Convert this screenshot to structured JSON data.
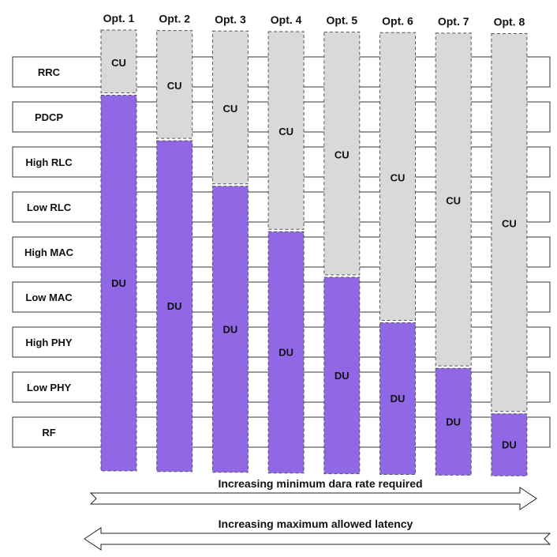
{
  "layers": [
    "RRC",
    "PDCP",
    "High RLC",
    "Low RLC",
    "High MAC",
    "Low MAC",
    "High PHY",
    "Low PHY",
    "RF"
  ],
  "options": [
    {
      "label": "Opt. 1",
      "cu_label": "CU",
      "du_label": "DU",
      "split_after_layer": 1
    },
    {
      "label": "Opt. 2",
      "cu_label": "CU",
      "du_label": "DU",
      "split_after_layer": 2
    },
    {
      "label": "Opt. 3",
      "cu_label": "CU",
      "du_label": "DU",
      "split_after_layer": 3
    },
    {
      "label": "Opt. 4",
      "cu_label": "CU",
      "du_label": "DU",
      "split_after_layer": 4
    },
    {
      "label": "Opt. 5",
      "cu_label": "CU",
      "du_label": "DU",
      "split_after_layer": 5
    },
    {
      "label": "Opt. 6",
      "cu_label": "CU",
      "du_label": "DU",
      "split_after_layer": 6
    },
    {
      "label": "Opt. 7",
      "cu_label": "CU",
      "du_label": "DU",
      "split_after_layer": 7
    },
    {
      "label": "Opt. 8",
      "cu_label": "CU",
      "du_label": "DU",
      "split_after_layer": 8
    }
  ],
  "colors": {
    "cu": "#d9d9d9",
    "du": "#9068e6",
    "border": "#555555"
  },
  "arrows": {
    "right": "Increasing minimum dara rate required",
    "left": "Increasing maximum allowed latency"
  }
}
